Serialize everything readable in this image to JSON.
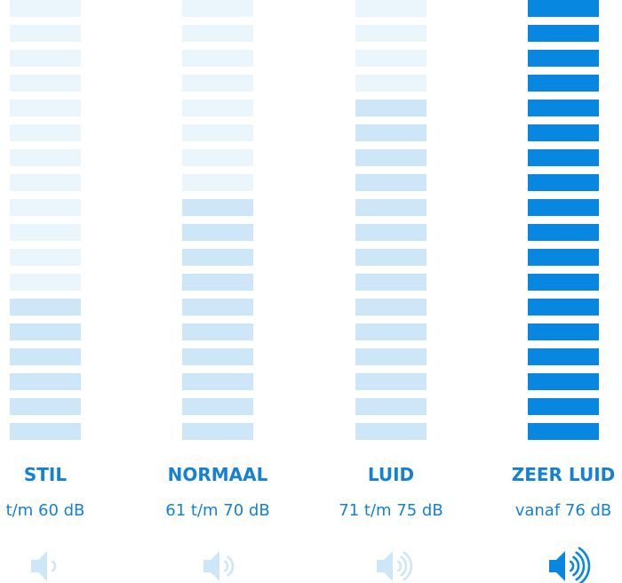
{
  "columns": [
    {
      "title": "STIL",
      "range": "t/m 60 dB"
    },
    {
      "title": "NORMAAL",
      "range": "61 t/m 70 dB"
    },
    {
      "title": "LUID",
      "range": "71 t/m 75 dB"
    },
    {
      "title": "ZEER LUID",
      "range": "vanaf 76 dB"
    }
  ]
}
